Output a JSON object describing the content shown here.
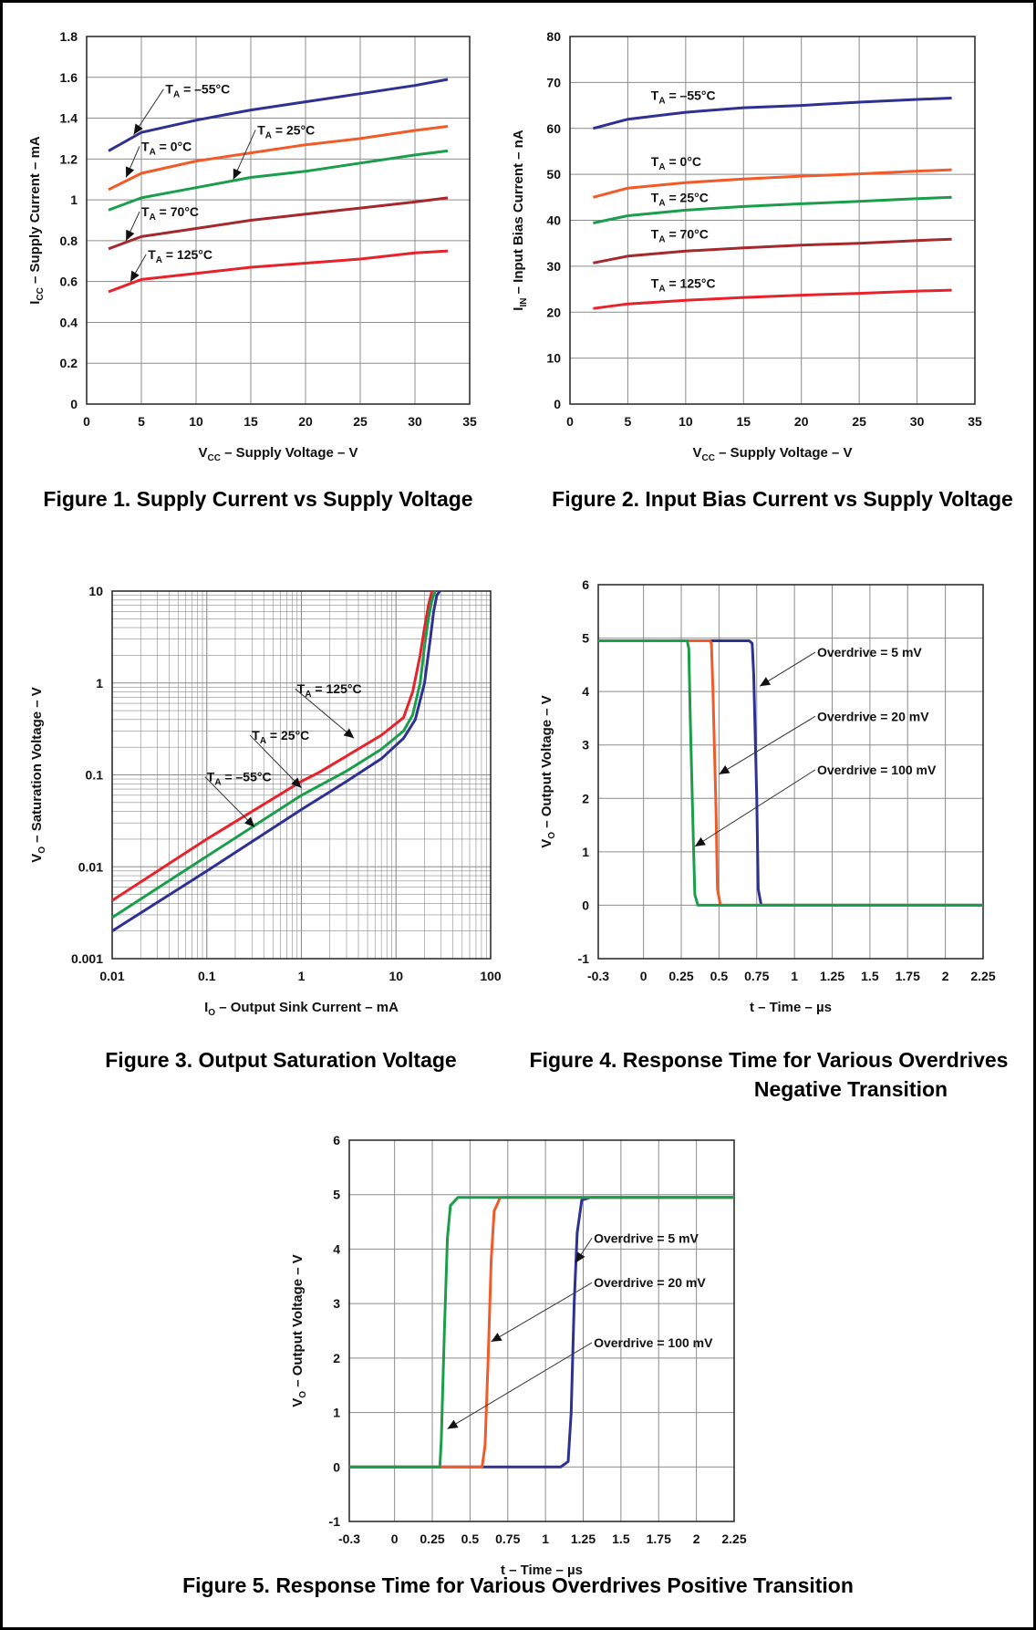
{
  "captions": {
    "fig1": "Figure 1. Supply Current vs Supply Voltage",
    "fig2": "Figure 2. Input Bias Current vs Supply Voltage",
    "fig3": "Figure 3. Output Saturation Voltage",
    "fig4_line1": "Figure 4. Response Time for Various Overdrives",
    "fig4_line2": "Negative Transition",
    "fig5": "Figure 5. Response Time for Various Overdrives Positive Transition"
  },
  "colors": {
    "blue": "#2e3192",
    "orange": "#f15a29",
    "green": "#1b9e4b",
    "darkred": "#a5282c",
    "red": "#e8222a",
    "grid": "#8c8c8c"
  },
  "chart_data": [
    {
      "id": "fig1",
      "type": "line",
      "xlabel": {
        "main": "V",
        "sub": "CC",
        "rest": " – Supply Voltage – V"
      },
      "ylabel": {
        "main": "I",
        "sub": "CC",
        "rest": " – Supply Current – mA"
      },
      "xlim": [
        0,
        35
      ],
      "ylim": [
        0,
        1.8
      ],
      "xscale": "linear",
      "yscale": "linear",
      "xticks": [
        0,
        5,
        10,
        15,
        20,
        25,
        30,
        35
      ],
      "xticklabels": [
        "0",
        "5",
        "10",
        "15",
        "20",
        "25",
        "30",
        "35"
      ],
      "yticks": [
        0,
        0.2,
        0.4,
        0.6,
        0.8,
        1,
        1.2,
        1.4,
        1.6,
        1.8
      ],
      "yticklabels": [
        "0",
        "0.2",
        "0.4",
        "0.6",
        "0.8",
        "1",
        "1.2",
        "1.4",
        "1.6",
        "1.8"
      ],
      "grid": true,
      "series": [
        {
          "name": "TA = –55°C",
          "color": "blue",
          "x": [
            2,
            5,
            10,
            15,
            20,
            25,
            30,
            33
          ],
          "y": [
            1.24,
            1.33,
            1.39,
            1.44,
            1.48,
            1.52,
            1.56,
            1.59
          ]
        },
        {
          "name": "TA = 0°C",
          "color": "orange",
          "x": [
            2,
            5,
            10,
            15,
            20,
            25,
            30,
            33
          ],
          "y": [
            1.05,
            1.13,
            1.19,
            1.23,
            1.27,
            1.3,
            1.34,
            1.36
          ]
        },
        {
          "name": "TA = 25°C",
          "color": "green",
          "x": [
            2,
            5,
            10,
            15,
            20,
            25,
            30,
            33
          ],
          "y": [
            0.95,
            1.01,
            1.06,
            1.11,
            1.14,
            1.18,
            1.22,
            1.24
          ]
        },
        {
          "name": "TA = 70°C",
          "color": "darkred",
          "x": [
            2,
            5,
            10,
            15,
            20,
            25,
            30,
            33
          ],
          "y": [
            0.76,
            0.82,
            0.86,
            0.9,
            0.93,
            0.96,
            0.99,
            1.01
          ]
        },
        {
          "name": "TA = 125°C",
          "color": "red",
          "x": [
            2,
            5,
            10,
            15,
            20,
            25,
            30,
            33
          ],
          "y": [
            0.55,
            0.61,
            0.64,
            0.67,
            0.69,
            0.71,
            0.74,
            0.75
          ]
        }
      ],
      "annotations": [
        {
          "main": "T",
          "sub": "A",
          "rest": " = –55°C",
          "tx": 7.2,
          "ty": 1.52,
          "px": 4.3,
          "py": 1.32
        },
        {
          "main": "T",
          "sub": "A",
          "rest": " = 0°C",
          "tx": 5.0,
          "ty": 1.24,
          "px": 3.6,
          "py": 1.11
        },
        {
          "main": "T",
          "sub": "A",
          "rest": " = 25°C",
          "tx": 15.6,
          "ty": 1.32,
          "px": 13.4,
          "py": 1.1
        },
        {
          "main": "T",
          "sub": "A",
          "rest": " = 70°C",
          "tx": 5.0,
          "ty": 0.92,
          "px": 3.6,
          "py": 0.8
        },
        {
          "main": "T",
          "sub": "A",
          "rest": " = 125°C",
          "tx": 5.6,
          "ty": 0.71,
          "px": 4.0,
          "py": 0.6
        }
      ]
    },
    {
      "id": "fig2",
      "type": "line",
      "xlabel": {
        "main": "V",
        "sub": "CC",
        "rest": " – Supply Voltage – V"
      },
      "ylabel": {
        "main": "I",
        "sub": "IN",
        "rest": " – Input Bias Current – nA"
      },
      "xlim": [
        0,
        35
      ],
      "ylim": [
        0,
        80
      ],
      "xscale": "linear",
      "yscale": "linear",
      "xticks": [
        0,
        5,
        10,
        15,
        20,
        25,
        30,
        35
      ],
      "xticklabels": [
        "0",
        "5",
        "10",
        "15",
        "20",
        "25",
        "30",
        "35"
      ],
      "yticks": [
        0,
        10,
        20,
        30,
        40,
        50,
        60,
        70,
        80
      ],
      "yticklabels": [
        "0",
        "10",
        "20",
        "30",
        "40",
        "50",
        "60",
        "70",
        "80"
      ],
      "grid": true,
      "series": [
        {
          "name": "TA = –55°C",
          "color": "blue",
          "x": [
            2,
            5,
            10,
            15,
            20,
            25,
            30,
            33
          ],
          "y": [
            60,
            62,
            63.5,
            64.5,
            65,
            65.7,
            66.3,
            66.6
          ]
        },
        {
          "name": "TA = 0°C",
          "color": "orange",
          "x": [
            2,
            5,
            10,
            15,
            20,
            25,
            30,
            33
          ],
          "y": [
            45,
            47,
            48.2,
            49,
            49.6,
            50.1,
            50.7,
            51
          ]
        },
        {
          "name": "TA = 25°C",
          "color": "green",
          "x": [
            2,
            5,
            10,
            15,
            20,
            25,
            30,
            33
          ],
          "y": [
            39.4,
            41,
            42.2,
            43,
            43.6,
            44.1,
            44.7,
            45
          ]
        },
        {
          "name": "TA = 70°C",
          "color": "darkred",
          "x": [
            2,
            5,
            10,
            15,
            20,
            25,
            30,
            33
          ],
          "y": [
            30.7,
            32.2,
            33.3,
            34,
            34.6,
            35,
            35.6,
            35.9
          ]
        },
        {
          "name": "TA = 125°C",
          "color": "red",
          "x": [
            2,
            5,
            10,
            15,
            20,
            25,
            30,
            33
          ],
          "y": [
            20.8,
            21.8,
            22.6,
            23.2,
            23.7,
            24.1,
            24.6,
            24.8
          ]
        }
      ],
      "annotations": [
        {
          "main": "T",
          "sub": "A",
          "rest": " = –55°C",
          "tx": 7.0,
          "ty": 66.2
        },
        {
          "main": "T",
          "sub": "A",
          "rest": " = 0°C",
          "tx": 7.0,
          "ty": 51.8
        },
        {
          "main": "T",
          "sub": "A",
          "rest": " = 25°C",
          "tx": 7.0,
          "ty": 44.0
        },
        {
          "main": "T",
          "sub": "A",
          "rest": " = 70°C",
          "tx": 7.0,
          "ty": 36.0
        },
        {
          "main": "T",
          "sub": "A",
          "rest": " = 125°C",
          "tx": 7.0,
          "ty": 25.3
        }
      ]
    },
    {
      "id": "fig3",
      "type": "line",
      "xlabel": {
        "main": "I",
        "sub": "O",
        "rest": " – Output Sink Current – mA"
      },
      "ylabel": {
        "main": "V",
        "sub": "O",
        "rest": " – Saturation Voltage – V"
      },
      "xlim": [
        0.01,
        100
      ],
      "ylim": [
        0.001,
        10
      ],
      "xscale": "log",
      "yscale": "log",
      "xticks": [
        0.01,
        0.1,
        1,
        10,
        100
      ],
      "xticklabels": [
        "0.01",
        "0.1",
        "1",
        "10",
        "100"
      ],
      "yticks": [
        0.001,
        0.01,
        0.1,
        1,
        10
      ],
      "yticklabels": [
        "0.001",
        "0.01",
        "0.1",
        "1",
        "10"
      ],
      "grid": true,
      "series": [
        {
          "name": "TA = 125°C",
          "color": "red",
          "x": [
            0.01,
            0.1,
            1,
            1.5,
            3,
            7,
            12,
            15,
            18,
            20,
            22,
            24
          ],
          "y": [
            0.0043,
            0.02,
            0.085,
            0.105,
            0.16,
            0.27,
            0.42,
            0.8,
            2,
            4,
            7,
            10
          ]
        },
        {
          "name": "TA = 25°C",
          "color": "green",
          "x": [
            0.01,
            0.1,
            1,
            3,
            7,
            12,
            15,
            18,
            20,
            22,
            24,
            26
          ],
          "y": [
            0.0028,
            0.013,
            0.06,
            0.11,
            0.19,
            0.3,
            0.45,
            1,
            2.5,
            5,
            8,
            10
          ]
        },
        {
          "name": "TA = –55°C",
          "color": "blue",
          "x": [
            0.01,
            0.1,
            1,
            3,
            7,
            12,
            16,
            20,
            23,
            25,
            27,
            29
          ],
          "y": [
            0.002,
            0.009,
            0.042,
            0.085,
            0.15,
            0.25,
            0.4,
            1,
            3,
            6,
            9,
            10
          ]
        }
      ],
      "annotations": [
        {
          "main": "T",
          "sub": "A",
          "rest": " = 125°C",
          "tx": 0.9,
          "ty": 0.77,
          "px": 3.6,
          "py": 0.25
        },
        {
          "main": "T",
          "sub": "A",
          "rest": " = 25°C",
          "tx": 0.3,
          "ty": 0.24,
          "px": 1.0,
          "py": 0.072
        },
        {
          "main": "T",
          "sub": "A",
          "rest": " = –55°C",
          "tx": 0.1,
          "ty": 0.085,
          "px": 0.32,
          "py": 0.027
        }
      ]
    },
    {
      "id": "fig4",
      "type": "line",
      "xlabel": {
        "main": "t – Time – µs",
        "sub": "",
        "rest": ""
      },
      "ylabel": {
        "main": "V",
        "sub": "O",
        "rest": " – Output Voltage – V"
      },
      "xlim": [
        -0.3,
        2.25
      ],
      "ylim": [
        -1,
        6
      ],
      "xscale": "linear",
      "yscale": "linear",
      "xticks": [
        -0.3,
        0,
        0.25,
        0.5,
        0.75,
        1,
        1.25,
        1.5,
        1.75,
        2,
        2.25
      ],
      "xticklabels": [
        "-0.3",
        "0",
        "0.25",
        "0.5",
        "0.75",
        "1",
        "1.25",
        "1.5",
        "1.75",
        "2",
        "2.25"
      ],
      "yticks": [
        -1,
        0,
        1,
        2,
        3,
        4,
        5,
        6
      ],
      "yticklabels": [
        "-1",
        "0",
        "1",
        "2",
        "3",
        "4",
        "5",
        "6"
      ],
      "grid": true,
      "series": [
        {
          "name": "Overdrive = 5 mV",
          "color": "blue",
          "x": [
            -0.3,
            0.7,
            0.72,
            0.73,
            0.75,
            0.76,
            0.78,
            2.25
          ],
          "y": [
            4.95,
            4.95,
            4.9,
            4.3,
            2.0,
            0.3,
            0,
            0
          ]
        },
        {
          "name": "Overdrive = 20 mV",
          "color": "orange",
          "x": [
            -0.3,
            0.44,
            0.45,
            0.46,
            0.48,
            0.49,
            0.51,
            2.25
          ],
          "y": [
            4.95,
            4.95,
            4.9,
            4.0,
            1.8,
            0.3,
            0,
            0
          ]
        },
        {
          "name": "Overdrive = 100 mV",
          "color": "green",
          "x": [
            -0.3,
            0.29,
            0.3,
            0.31,
            0.33,
            0.34,
            0.36,
            2.25
          ],
          "y": [
            4.95,
            4.95,
            4.8,
            3.5,
            1.2,
            0.2,
            0,
            0
          ]
        }
      ],
      "annotations": [
        {
          "main": "Overdrive = 5 mV",
          "sub": "",
          "rest": "",
          "tx": 1.15,
          "ty": 4.65,
          "px": 0.77,
          "py": 4.1
        },
        {
          "main": "Overdrive = 20 mV",
          "sub": "",
          "rest": "",
          "tx": 1.15,
          "ty": 3.45,
          "px": 0.5,
          "py": 2.45
        },
        {
          "main": "Overdrive = 100 mV",
          "sub": "",
          "rest": "",
          "tx": 1.15,
          "ty": 2.45,
          "px": 0.34,
          "py": 1.1
        }
      ]
    },
    {
      "id": "fig5",
      "type": "line",
      "xlabel": {
        "main": "t – Time – µs",
        "sub": "",
        "rest": ""
      },
      "ylabel": {
        "main": "V",
        "sub": "O",
        "rest": " – Output Voltage – V"
      },
      "xlim": [
        -0.3,
        2.25
      ],
      "ylim": [
        -1,
        6
      ],
      "xscale": "linear",
      "yscale": "linear",
      "xticks": [
        -0.3,
        0,
        0.25,
        0.5,
        0.75,
        1,
        1.25,
        1.5,
        1.75,
        2,
        2.25
      ],
      "xticklabels": [
        "-0.3",
        "0",
        "0.25",
        "0.5",
        "0.75",
        "1",
        "1.25",
        "1.5",
        "1.75",
        "2",
        "2.25"
      ],
      "yticks": [
        -1,
        0,
        1,
        2,
        3,
        4,
        5,
        6
      ],
      "yticklabels": [
        "-1",
        "0",
        "1",
        "2",
        "3",
        "4",
        "5",
        "6"
      ],
      "grid": true,
      "series": [
        {
          "name": "Overdrive = 5 mV",
          "color": "blue",
          "x": [
            -0.3,
            1.1,
            1.15,
            1.17,
            1.19,
            1.21,
            1.24,
            1.3,
            2.25
          ],
          "y": [
            0,
            0,
            0.1,
            1.0,
            3.0,
            4.3,
            4.9,
            4.95,
            4.95
          ]
        },
        {
          "name": "Overdrive = 20 mV",
          "color": "orange",
          "x": [
            -0.3,
            0.58,
            0.6,
            0.62,
            0.64,
            0.66,
            0.7,
            2.25
          ],
          "y": [
            0,
            0,
            0.4,
            2.0,
            3.8,
            4.7,
            4.95,
            4.95
          ]
        },
        {
          "name": "Overdrive = 100 mV",
          "color": "green",
          "x": [
            -0.3,
            0.3,
            0.31,
            0.33,
            0.35,
            0.37,
            0.42,
            2.25
          ],
          "y": [
            0,
            0,
            0.5,
            2.5,
            4.2,
            4.8,
            4.95,
            4.95
          ]
        }
      ],
      "annotations": [
        {
          "main": "Overdrive = 5 mV",
          "sub": "",
          "rest": "",
          "tx": 1.32,
          "ty": 4.12,
          "px": 1.2,
          "py": 3.75
        },
        {
          "main": "Overdrive = 20 mV",
          "sub": "",
          "rest": "",
          "tx": 1.32,
          "ty": 3.3,
          "px": 0.64,
          "py": 2.3
        },
        {
          "main": "Overdrive = 100 mV",
          "sub": "",
          "rest": "",
          "tx": 1.32,
          "ty": 2.2,
          "px": 0.35,
          "py": 0.7
        }
      ]
    }
  ]
}
